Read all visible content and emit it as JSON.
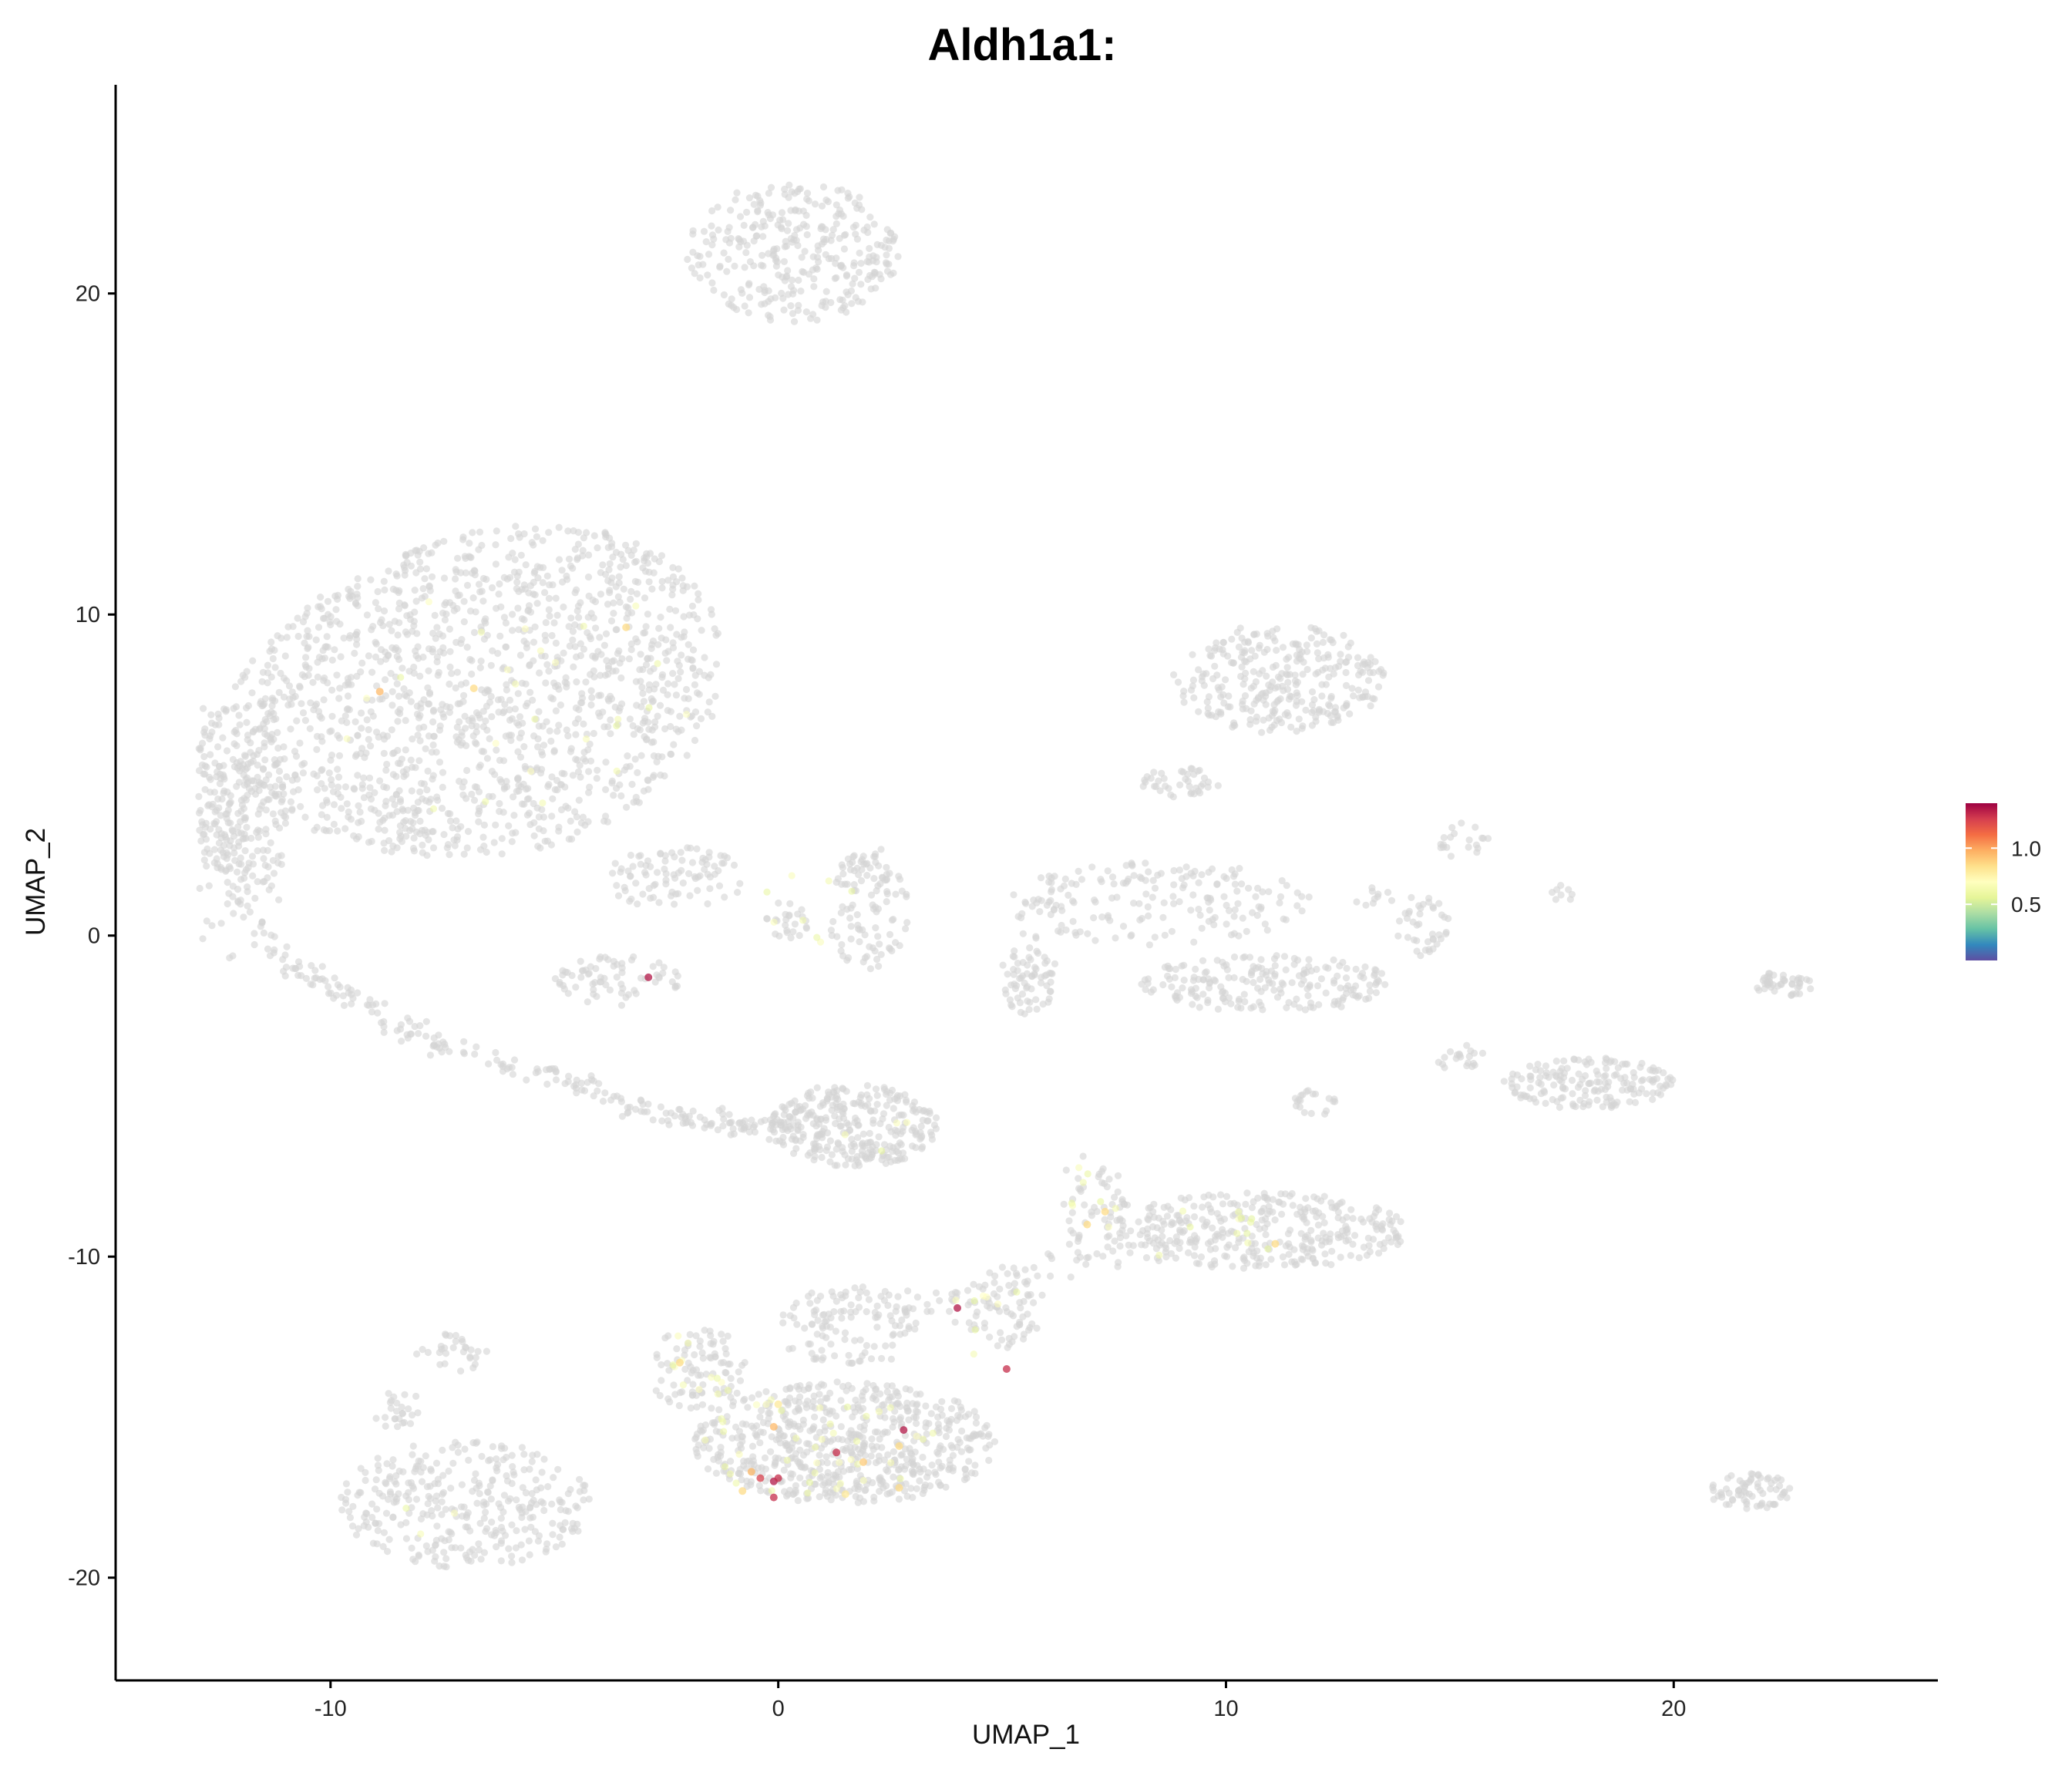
{
  "chart_data": {
    "type": "scatter",
    "title": "Aldh1a1:",
    "xlabel": "UMAP_1",
    "ylabel": "UMAP_2",
    "xlim": [
      -14.8,
      25.9
    ],
    "ylim": [
      -23.2,
      26.5
    ],
    "xticks": [
      -10,
      0,
      10,
      20
    ],
    "yticks": [
      -20,
      -10,
      0,
      10,
      20
    ],
    "xtick_labels": [
      "-10",
      "0",
      "10",
      "20"
    ],
    "ytick_labels": [
      "-20",
      "-10",
      "0",
      "10",
      "20"
    ],
    "grid": false,
    "background_point_color": "#d3d3d3",
    "colorscale": [
      "#5e4fa2",
      "#3288bd",
      "#66c2a5",
      "#abdda4",
      "#e6f598",
      "#ffffbf",
      "#fee08b",
      "#fdae61",
      "#f46d43",
      "#d53e4f",
      "#9e0142"
    ],
    "color_range": [
      0,
      1.4
    ],
    "legend": {
      "placement": "right",
      "ticks": [
        0.5,
        1.0
      ],
      "tick_labels": [
        "0.5",
        "1.0"
      ]
    },
    "clusters": [
      {
        "name": "",
        "cx": -6.8,
        "cy": 7.5,
        "rx": 5.6,
        "ry": 5.7,
        "n": 1700,
        "shape": "big"
      },
      {
        "name": "",
        "cx": 0.3,
        "cy": 21.3,
        "rx": 2.4,
        "ry": 2.2,
        "n": 320
      },
      {
        "name": "",
        "cx": -2.3,
        "cy": 1.8,
        "rx": 1.6,
        "ry": 1.0,
        "n": 90
      },
      {
        "name": "",
        "cx": 0.2,
        "cy": 0.5,
        "rx": 0.5,
        "ry": 0.7,
        "n": 25
      },
      {
        "name": "",
        "cx": 2.0,
        "cy": 0.8,
        "rx": 0.9,
        "ry": 2.0,
        "n": 110
      },
      {
        "name": "",
        "cx": -3.6,
        "cy": -1.4,
        "rx": 1.4,
        "ry": 0.8,
        "n": 70
      },
      {
        "name": "",
        "cx": 1.7,
        "cy": -5.9,
        "rx": 1.9,
        "ry": 1.3,
        "n": 300
      },
      {
        "name": "",
        "cx": -7.0,
        "cy": -17.7,
        "rx": 2.8,
        "ry": 2.0,
        "n": 330
      },
      {
        "name": "",
        "cx": -7.3,
        "cy": -13.0,
        "rx": 0.8,
        "ry": 0.6,
        "n": 30
      },
      {
        "name": "",
        "cx": -8.5,
        "cy": -14.8,
        "rx": 0.7,
        "ry": 0.6,
        "n": 25
      },
      {
        "name": "",
        "cx": -1.8,
        "cy": -13.5,
        "rx": 1.1,
        "ry": 1.3,
        "n": 90
      },
      {
        "name": "",
        "cx": 1.5,
        "cy": -15.8,
        "rx": 3.4,
        "ry": 1.9,
        "n": 640
      },
      {
        "name": "",
        "cx": 1.6,
        "cy": -12.2,
        "rx": 1.6,
        "ry": 1.3,
        "n": 110
      },
      {
        "name": "",
        "cx": 4.9,
        "cy": -11.6,
        "rx": 1.1,
        "ry": 1.3,
        "n": 70
      },
      {
        "name": "",
        "cx": 7.0,
        "cy": -8.4,
        "rx": 0.8,
        "ry": 1.6,
        "n": 55
      },
      {
        "name": "",
        "cx": 10.7,
        "cy": -9.2,
        "rx": 3.4,
        "ry": 1.2,
        "n": 340
      },
      {
        "name": "",
        "cx": 11.2,
        "cy": 8.0,
        "rx": 2.4,
        "ry": 1.7,
        "n": 300
      },
      {
        "name": "",
        "cx": 9.0,
        "cy": 4.8,
        "rx": 0.9,
        "ry": 0.5,
        "n": 40
      },
      {
        "name": "",
        "cx": 8.5,
        "cy": 1.0,
        "rx": 3.4,
        "ry": 1.3,
        "n": 180
      },
      {
        "name": "",
        "cx": 5.6,
        "cy": -1.2,
        "rx": 0.6,
        "ry": 1.3,
        "n": 70
      },
      {
        "name": "",
        "cx": 10.9,
        "cy": -1.5,
        "rx": 2.8,
        "ry": 0.9,
        "n": 200
      },
      {
        "name": "",
        "cx": 14.4,
        "cy": 0.3,
        "rx": 0.6,
        "ry": 1.0,
        "n": 40
      },
      {
        "name": "",
        "cx": 15.3,
        "cy": 3.0,
        "rx": 0.6,
        "ry": 0.6,
        "n": 20
      },
      {
        "name": "",
        "cx": 15.2,
        "cy": -3.8,
        "rx": 0.6,
        "ry": 0.4,
        "n": 20
      },
      {
        "name": "",
        "cx": 18.1,
        "cy": -4.6,
        "rx": 1.9,
        "ry": 0.8,
        "n": 170
      },
      {
        "name": "",
        "cx": 12.0,
        "cy": -5.2,
        "rx": 0.5,
        "ry": 0.4,
        "n": 20
      },
      {
        "name": "",
        "cx": 22.5,
        "cy": -1.5,
        "rx": 0.7,
        "ry": 0.4,
        "n": 45
      },
      {
        "name": "",
        "cx": 21.7,
        "cy": -17.3,
        "rx": 0.9,
        "ry": 0.6,
        "n": 70
      },
      {
        "name": "",
        "cx": 17.5,
        "cy": 1.3,
        "rx": 0.4,
        "ry": 0.3,
        "n": 8
      },
      {
        "name": "",
        "cx": 13.3,
        "cy": 1.2,
        "rx": 0.5,
        "ry": 0.3,
        "n": 10
      }
    ],
    "trails": [
      {
        "points": [
          [
            -12.5,
            2.8
          ],
          [
            -11.3,
            -0.5
          ],
          [
            -9.5,
            -2.0
          ],
          [
            -7.5,
            -3.5
          ],
          [
            -5.0,
            -4.4
          ],
          [
            -3.0,
            -5.4
          ],
          [
            -1.0,
            -5.9
          ],
          [
            0.5,
            -6.0
          ]
        ],
        "n": 260,
        "spread": 0.35
      },
      {
        "points": [
          [
            0.3,
            -12.0
          ],
          [
            1.5,
            -11.6
          ],
          [
            3.0,
            -11.5
          ],
          [
            4.5,
            -11.0
          ],
          [
            6.0,
            -10.3
          ],
          [
            7.5,
            -10.0
          ],
          [
            9.0,
            -9.6
          ]
        ],
        "n": 60,
        "spread": 0.45
      }
    ],
    "highlighted_points": [
      {
        "x": -8.9,
        "y": 7.6,
        "value": 0.95
      },
      {
        "x": -6.8,
        "y": 7.7,
        "value": 0.85
      },
      {
        "x": -3.4,
        "y": 9.6,
        "value": 0.85
      },
      {
        "x": -2.9,
        "y": -1.3,
        "value": 1.35
      },
      {
        "x": 7.3,
        "y": -8.6,
        "value": 0.85
      },
      {
        "x": 6.9,
        "y": -9.0,
        "value": 0.85
      },
      {
        "x": 11.1,
        "y": -9.6,
        "value": 0.85
      },
      {
        "x": 4.0,
        "y": -11.6,
        "value": 1.35
      },
      {
        "x": 5.1,
        "y": -13.5,
        "value": 1.3
      },
      {
        "x": -2.2,
        "y": -13.3,
        "value": 0.85
      },
      {
        "x": 0.0,
        "y": -14.6,
        "value": 0.8
      },
      {
        "x": -0.1,
        "y": -15.3,
        "value": 0.95
      },
      {
        "x": 2.8,
        "y": -15.4,
        "value": 1.35
      },
      {
        "x": 1.3,
        "y": -16.1,
        "value": 1.3
      },
      {
        "x": 1.9,
        "y": -16.4,
        "value": 0.9
      },
      {
        "x": 2.7,
        "y": -15.9,
        "value": 0.85
      },
      {
        "x": -0.6,
        "y": -16.7,
        "value": 0.95
      },
      {
        "x": -0.4,
        "y": -16.9,
        "value": 1.25
      },
      {
        "x": -0.1,
        "y": -17.0,
        "value": 1.35
      },
      {
        "x": 0.0,
        "y": -16.9,
        "value": 1.3
      },
      {
        "x": -0.8,
        "y": -17.3,
        "value": 0.85
      },
      {
        "x": -0.1,
        "y": -17.5,
        "value": 1.3
      },
      {
        "x": 1.5,
        "y": -17.4,
        "value": 0.8
      },
      {
        "x": 2.7,
        "y": -17.2,
        "value": 0.85
      }
    ],
    "low_expression_points_per_region": [
      {
        "cx": -6.0,
        "cy": 7.5,
        "rx": 4.0,
        "ry": 4.0,
        "n": 25
      },
      {
        "cx": 0.8,
        "cy": -15.8,
        "rx": 2.8,
        "ry": 1.6,
        "n": 40
      },
      {
        "cx": -1.8,
        "cy": -13.5,
        "rx": 1.0,
        "ry": 1.2,
        "n": 12
      },
      {
        "cx": 9.8,
        "cy": -9.2,
        "rx": 2.0,
        "ry": 1.0,
        "n": 12
      },
      {
        "cx": 7.0,
        "cy": -8.4,
        "rx": 0.6,
        "ry": 1.5,
        "n": 8
      },
      {
        "cx": 4.8,
        "cy": -12.0,
        "rx": 1.0,
        "ry": 1.2,
        "n": 8
      },
      {
        "cx": 1.2,
        "cy": 1.0,
        "rx": 1.5,
        "ry": 1.5,
        "n": 8
      },
      {
        "cx": 1.8,
        "cy": -6.0,
        "rx": 1.2,
        "ry": 0.8,
        "n": 4
      },
      {
        "cx": -7.0,
        "cy": -18.5,
        "rx": 2.0,
        "ry": 1.2,
        "n": 3
      }
    ]
  }
}
